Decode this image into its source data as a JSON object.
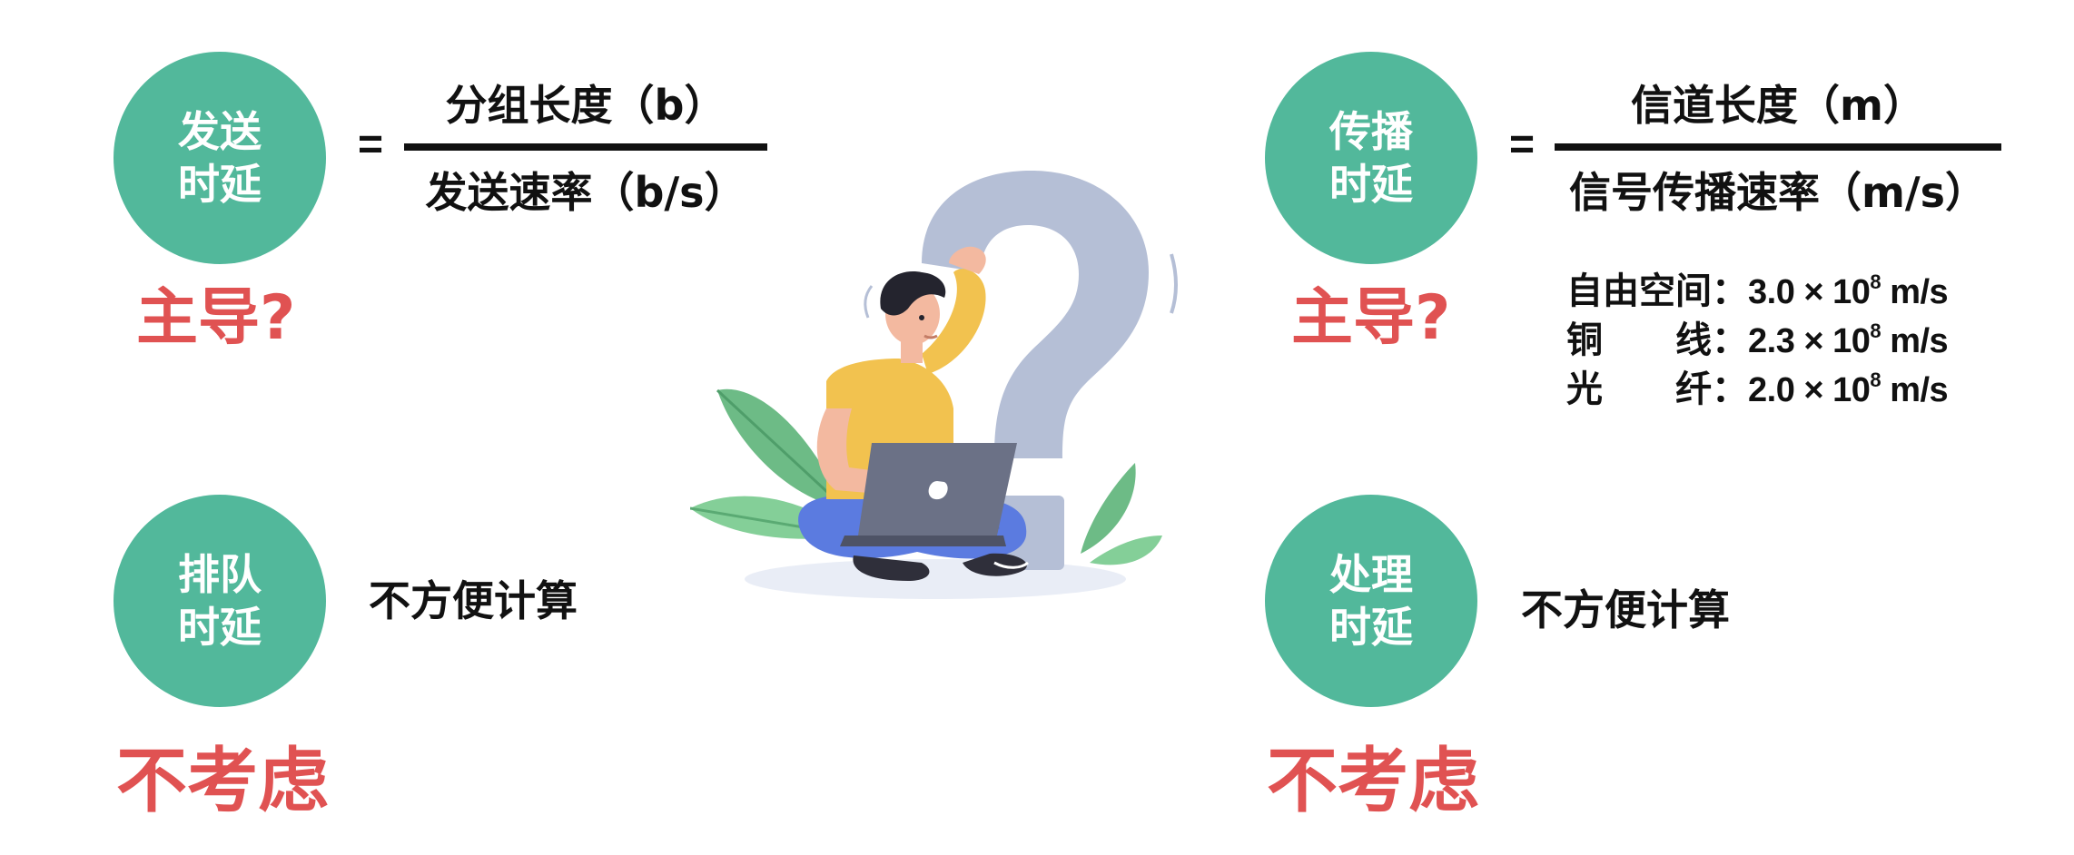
{
  "tx_delay": {
    "circle": [
      "发送",
      "时延"
    ],
    "eq": "=",
    "numerator": "分组长度（b）",
    "denominator": "发送速率（b/s）",
    "verdict": "主导?"
  },
  "prop_delay": {
    "circle": [
      "传播",
      "时延"
    ],
    "eq": "=",
    "numerator": "信道长度（m）",
    "denominator": "信号传播速率（m/s）",
    "verdict": "主导?",
    "speeds": [
      {
        "label": [
          "自由空间"
        ],
        "colon": "：",
        "coef": "3.0 × 10",
        "exp": "8",
        "unit": " m/s"
      },
      {
        "label": [
          "铜",
          "线"
        ],
        "colon": "：",
        "coef": "2.3 × 10",
        "exp": "8",
        "unit": " m/s"
      },
      {
        "label": [
          "光",
          "纤"
        ],
        "colon": "：",
        "coef": "2.0 × 10",
        "exp": "8",
        "unit": " m/s"
      }
    ]
  },
  "queue_delay": {
    "circle": [
      "排队",
      "时延"
    ],
    "note": "不方便计算",
    "verdict": "不考虑"
  },
  "proc_delay": {
    "circle": [
      "处理",
      "时延"
    ],
    "note": "不方便计算",
    "verdict": "不考虑"
  },
  "colors": {
    "circle": "#52b89b",
    "accent_red": "#e05252",
    "question_mark": "#b5bfd6",
    "shirt": "#f2c24f",
    "pants": "#5b7be0",
    "leaf": "#6dbb86"
  },
  "illustration_icon": "thinking-person-with-laptop-and-question-mark"
}
